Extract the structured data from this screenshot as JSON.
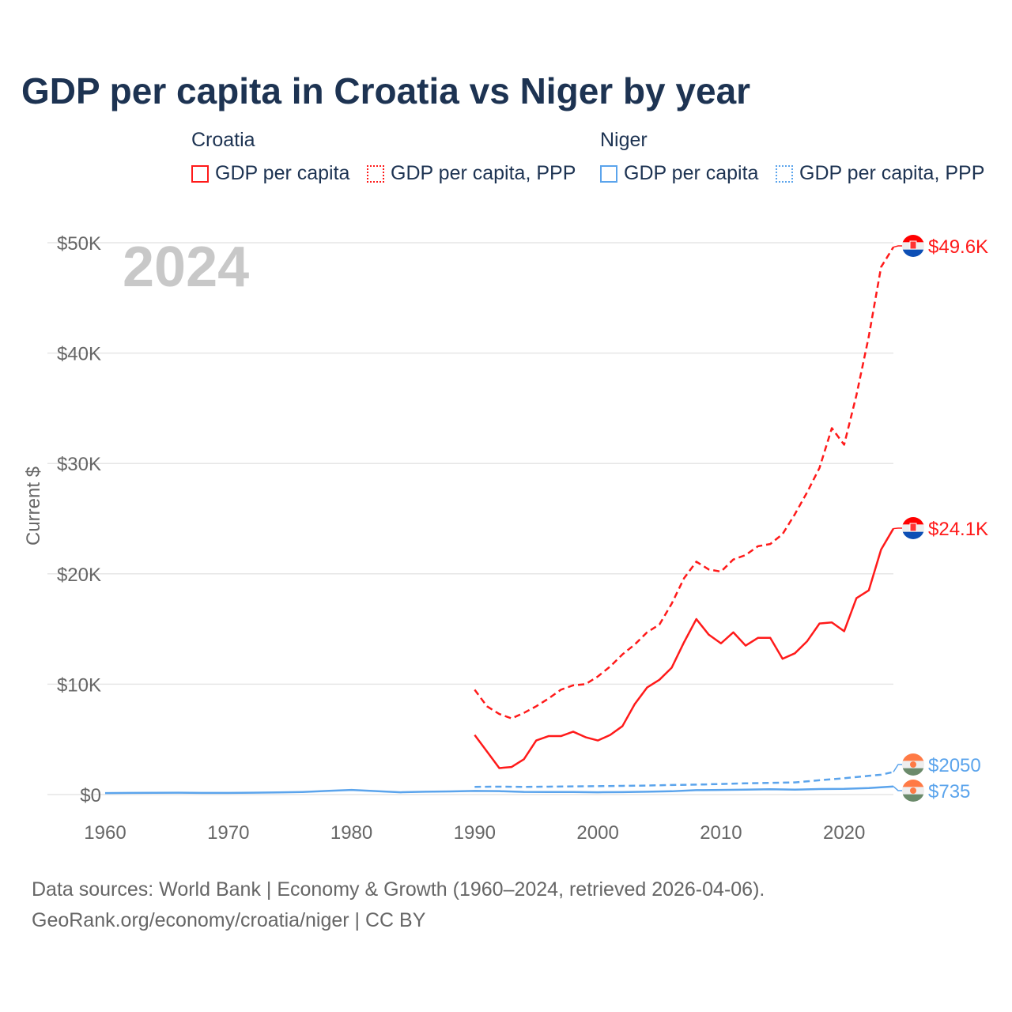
{
  "title": "GDP per capita in Croatia vs Niger by year",
  "legend": {
    "groups": [
      {
        "name": "Croatia",
        "items": [
          "GDP per capita",
          "GDP per capita, PPP"
        ]
      },
      {
        "name": "Niger",
        "items": [
          "GDP per capita",
          "GDP per capita, PPP"
        ]
      }
    ]
  },
  "year_label": "2024",
  "footer": {
    "line1": "Data sources: World Bank | Economy & Growth (1960–2024, retrieved 2026-04-06).",
    "line2": "GeoRank.org/economy/croatia/niger | CC BY"
  },
  "colors": {
    "croatia": "#ff1a1a",
    "niger": "#5ba4ec",
    "grid": "#e6e6e6",
    "axis_text": "#666666"
  },
  "chart_data": {
    "type": "line",
    "title": "GDP per capita in Croatia vs Niger by year",
    "xlabel": "",
    "ylabel": "Current $",
    "xlim": [
      1960,
      2024
    ],
    "ylim": [
      0,
      50000
    ],
    "xticks": [
      1960,
      1970,
      1980,
      1990,
      2000,
      2010,
      2020
    ],
    "xtick_labels": [
      "1960",
      "1970",
      "1980",
      "1990",
      "2000",
      "2010",
      "2020"
    ],
    "yticks": [
      0,
      10000,
      20000,
      30000,
      40000,
      50000
    ],
    "ytick_labels": [
      "$0",
      "$10K",
      "$20K",
      "$30K",
      "$40K",
      "$50K"
    ],
    "grid": true,
    "series": [
      {
        "name": "Croatia GDP per capita",
        "country": "croatia",
        "style": "solid",
        "end_label": "$24.1K",
        "x": [
          1990,
          1991,
          1992,
          1993,
          1994,
          1995,
          1996,
          1997,
          1998,
          1999,
          2000,
          2001,
          2002,
          2003,
          2004,
          2005,
          2006,
          2007,
          2008,
          2009,
          2010,
          2011,
          2012,
          2013,
          2014,
          2015,
          2016,
          2017,
          2018,
          2019,
          2020,
          2021,
          2022,
          2023,
          2024
        ],
        "y": [
          5400,
          3900,
          2400,
          2500,
          3200,
          4900,
          5300,
          5300,
          5700,
          5200,
          4900,
          5400,
          6200,
          8200,
          9700,
          10400,
          11500,
          13800,
          15900,
          14500,
          13700,
          14700,
          13500,
          14200,
          14200,
          12300,
          12800,
          13900,
          15500,
          15600,
          14800,
          17800,
          18500,
          22200,
          24100
        ]
      },
      {
        "name": "Croatia GDP per capita, PPP",
        "country": "croatia",
        "style": "dashed",
        "end_label": "$49.6K",
        "x": [
          1990,
          1991,
          1992,
          1993,
          1994,
          1995,
          1996,
          1997,
          1998,
          1999,
          2000,
          2001,
          2002,
          2003,
          2004,
          2005,
          2006,
          2007,
          2008,
          2009,
          2010,
          2011,
          2012,
          2013,
          2014,
          2015,
          2016,
          2017,
          2018,
          2019,
          2020,
          2021,
          2022,
          2023,
          2024
        ],
        "y": [
          9500,
          8000,
          7300,
          6900,
          7400,
          8000,
          8700,
          9500,
          9900,
          10000,
          10700,
          11600,
          12700,
          13600,
          14700,
          15400,
          17300,
          19600,
          21100,
          20400,
          20200,
          21300,
          21700,
          22500,
          22700,
          23600,
          25400,
          27400,
          29600,
          33200,
          31700,
          36200,
          41500,
          47800,
          49600
        ]
      },
      {
        "name": "Niger GDP per capita",
        "country": "niger",
        "style": "solid",
        "end_label": "$735",
        "x": [
          1960,
          1962,
          1964,
          1966,
          1968,
          1970,
          1972,
          1974,
          1976,
          1978,
          1980,
          1982,
          1984,
          1986,
          1988,
          1990,
          1992,
          1994,
          1996,
          1998,
          2000,
          2002,
          2004,
          2006,
          2008,
          2010,
          2012,
          2014,
          2016,
          2018,
          2020,
          2022,
          2024
        ],
        "y": [
          130,
          150,
          160,
          170,
          150,
          150,
          170,
          200,
          230,
          330,
          420,
          310,
          210,
          260,
          290,
          330,
          310,
          240,
          230,
          230,
          210,
          220,
          260,
          300,
          400,
          420,
          450,
          480,
          450,
          500,
          520,
          590,
          735
        ]
      },
      {
        "name": "Niger GDP per capita, PPP",
        "country": "niger",
        "style": "dashed",
        "end_label": "$2050",
        "x": [
          1990,
          1992,
          1994,
          1996,
          1998,
          2000,
          2002,
          2004,
          2006,
          2008,
          2010,
          2012,
          2014,
          2016,
          2018,
          2020,
          2022,
          2023,
          2024
        ],
        "y": [
          700,
          720,
          700,
          720,
          740,
          760,
          790,
          820,
          870,
          900,
          960,
          1020,
          1060,
          1100,
          1300,
          1480,
          1700,
          1800,
          2050
        ]
      }
    ]
  }
}
